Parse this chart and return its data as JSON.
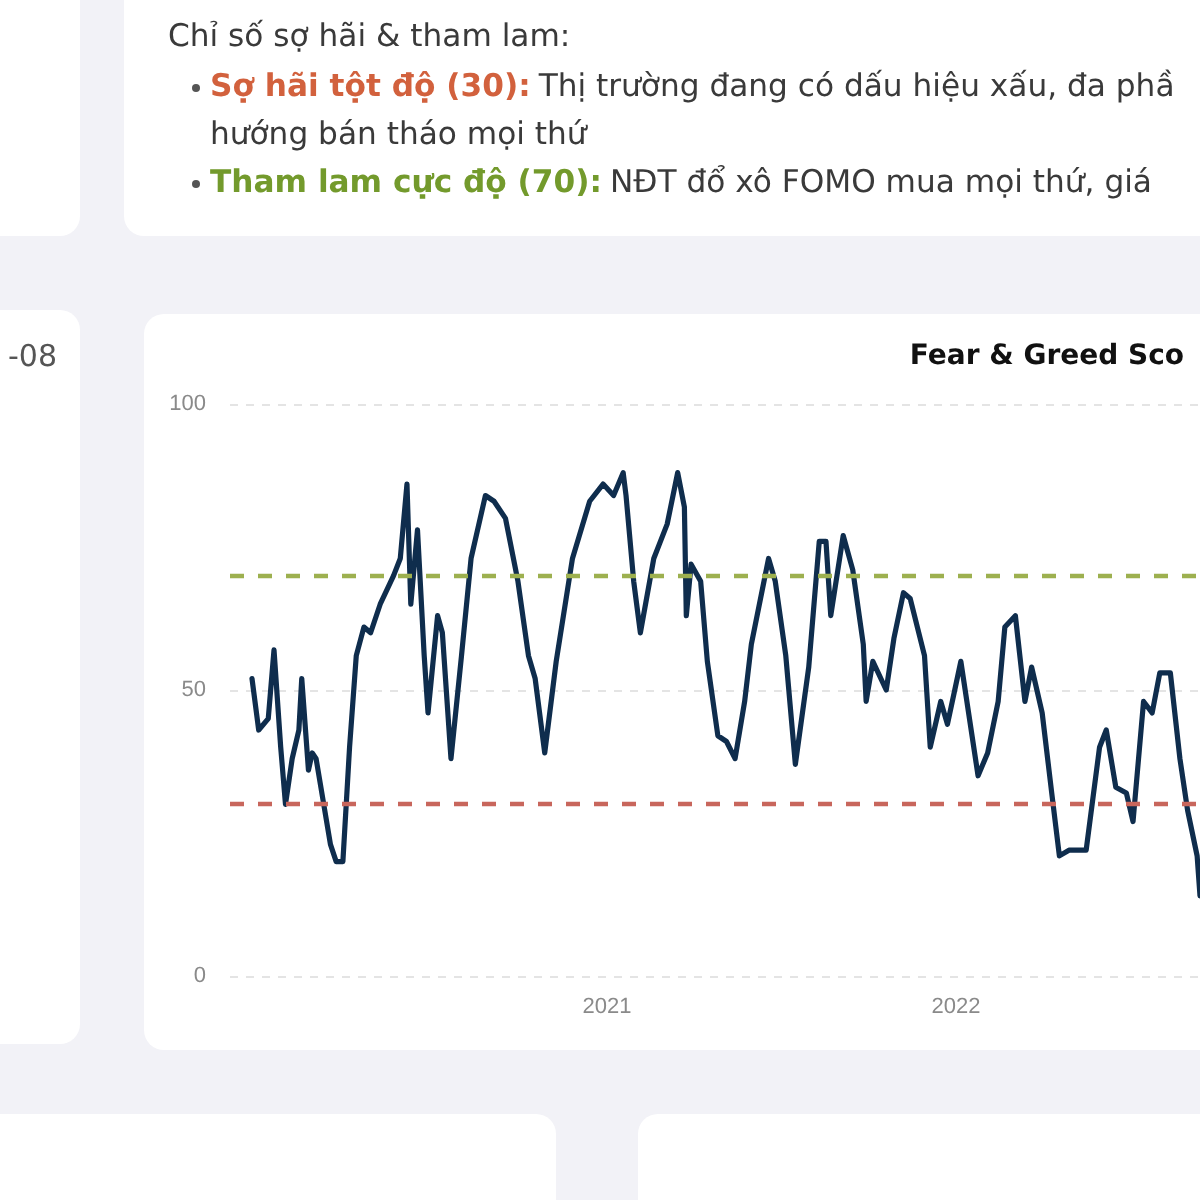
{
  "chart_data": {
    "type": "line",
    "title": "Fear & Greed Sco",
    "x": [
      "2019-12-27",
      "2020-01-03",
      "2020-01-13",
      "2020-01-19",
      "2020-01-26",
      "2020-01-31",
      "2020-02-07",
      "2020-02-14",
      "2020-02-17",
      "2020-02-24",
      "2020-02-28",
      "2020-03-03",
      "2020-03-10",
      "2020-03-18",
      "2020-03-24",
      "2020-03-31",
      "2020-04-07",
      "2020-04-14",
      "2020-04-22",
      "2020-04-29",
      "2020-05-09",
      "2020-05-23",
      "2020-05-30",
      "2020-06-06",
      "2020-06-10",
      "2020-06-17",
      "2020-06-24",
      "2020-06-28",
      "2020-07-08",
      "2020-07-13",
      "2020-07-22",
      "2020-08-02",
      "2020-08-12",
      "2020-08-27",
      "2020-09-05",
      "2020-09-17",
      "2020-09-30",
      "2020-10-11",
      "2020-10-18",
      "2020-10-28",
      "2020-11-09",
      "2020-11-26",
      "2020-12-14",
      "2020-12-28",
      "2021-01-08",
      "2021-01-18",
      "2021-01-21",
      "2021-01-29",
      "2021-02-05",
      "2021-02-19",
      "2021-03-05",
      "2021-03-16",
      "2021-03-23",
      "2021-03-25",
      "2021-03-30",
      "2021-04-09",
      "2021-04-16",
      "2021-04-27",
      "2021-05-06",
      "2021-05-15",
      "2021-05-25",
      "2021-06-01",
      "2021-06-19",
      "2021-06-26",
      "2021-07-07",
      "2021-07-17",
      "2021-07-31",
      "2021-08-11",
      "2021-08-18",
      "2021-08-23",
      "2021-09-05",
      "2021-09-15",
      "2021-09-26",
      "2021-09-29",
      "2021-10-06",
      "2021-10-20",
      "2021-10-28",
      "2021-11-07",
      "2021-11-14",
      "2021-11-29",
      "2021-12-05",
      "2021-12-16",
      "2021-12-23",
      "2022-01-06",
      "2022-01-24",
      "2022-02-03",
      "2022-02-14",
      "2022-02-21",
      "2022-03-04",
      "2022-03-14",
      "2022-03-21",
      "2022-04-01",
      "2022-04-11",
      "2022-04-19",
      "2022-04-29",
      "2022-05-17",
      "2022-05-31",
      "2022-06-07",
      "2022-06-17",
      "2022-06-28",
      "2022-07-05",
      "2022-07-16",
      "2022-07-25",
      "2022-08-02",
      "2022-08-13",
      "2022-08-23",
      "2022-08-31",
      "2022-09-10",
      "2022-09-13"
    ],
    "values": [
      52,
      43,
      45,
      57,
      40,
      30,
      38,
      43,
      52,
      36,
      39,
      38,
      31,
      23,
      20,
      20,
      40,
      56,
      61,
      60,
      65,
      70,
      73,
      86,
      65,
      78,
      56,
      46,
      63,
      60,
      38,
      56,
      73,
      84,
      83,
      80,
      69,
      56,
      52,
      39,
      55,
      73,
      83,
      86,
      84,
      88,
      84,
      69,
      60,
      73,
      79,
      88,
      82,
      63,
      72,
      69,
      55,
      42,
      41,
      38,
      48,
      58,
      73,
      69,
      56,
      37,
      54,
      76,
      76,
      63,
      77,
      71,
      58,
      48,
      55,
      50,
      59,
      67,
      66,
      56,
      40,
      48,
      44,
      55,
      35,
      39,
      48,
      61,
      63,
      48,
      54,
      46,
      32,
      21,
      22,
      22,
      40,
      43,
      33,
      32,
      27,
      48,
      46,
      53,
      53,
      38,
      29,
      21,
      14
    ],
    "color": "#0f2d4d",
    "marker": "none",
    "line_style": "solid",
    "xlim": [
      "2019-12-04",
      "2022-09-13"
    ],
    "xticks": [
      "2021",
      "2022"
    ],
    "ylim": [
      0,
      100
    ],
    "yticks": [
      0,
      50,
      100
    ],
    "grid": "y",
    "ref_lines": [
      {
        "axis": "y",
        "value": 70,
        "color": "#9db04f",
        "line_style": "dashed"
      },
      {
        "axis": "y",
        "value": 30,
        "color": "#c8665c",
        "line_style": "dashed"
      }
    ],
    "annotations": [
      "Chỉ số sợ hãi & tham lam:",
      "Sợ hãi tột độ (30):",
      "Thị trường đang có dấu hiệu xấu, đa phầ",
      "hướng bán tháo mọi thứ",
      "Tham lam cực độ (70):",
      "NĐT đổ xô FOMO mua mọi thứ, giá",
      "-08"
    ]
  }
}
